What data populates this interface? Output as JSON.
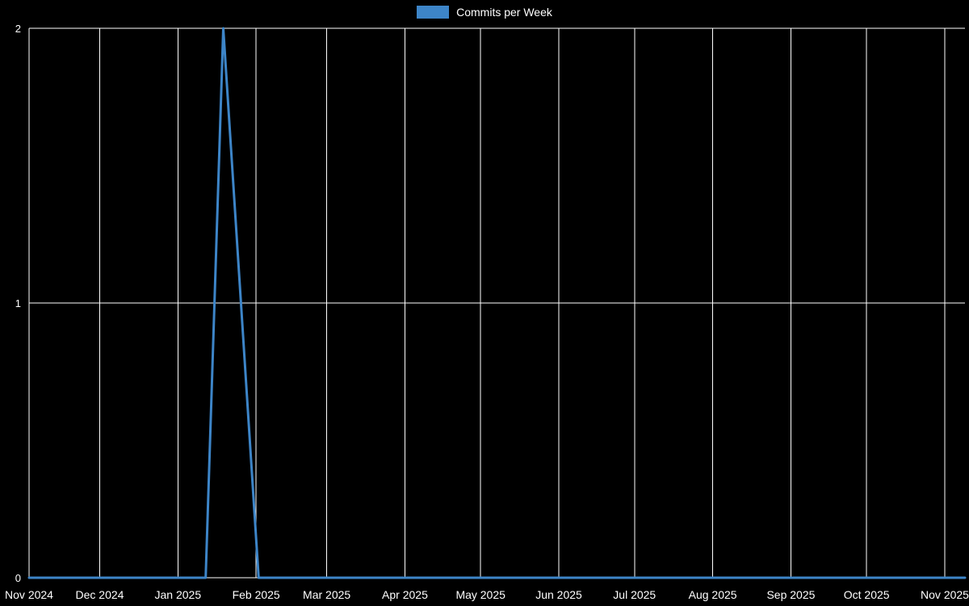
{
  "chart_data": {
    "type": "line",
    "title": "Commits per Week",
    "legend_position": "top",
    "background_color": "#000000",
    "grid_color": "#ffffff",
    "axis_text_color": "#ffffff",
    "line_color": "#3d85c8",
    "grid_on": true,
    "ylim": [
      0,
      2
    ],
    "y_ticks": [
      0,
      1,
      2
    ],
    "x_domain": [
      "2024-11-03",
      "2025-11-09"
    ],
    "x_ticks": [
      {
        "label": "Nov 2024",
        "date": "2024-11-03"
      },
      {
        "label": "Dec 2024",
        "date": "2024-12-01"
      },
      {
        "label": "Jan 2025",
        "date": "2025-01-01"
      },
      {
        "label": "Feb 2025",
        "date": "2025-02-01"
      },
      {
        "label": "Mar 2025",
        "date": "2025-03-01"
      },
      {
        "label": "Apr 2025",
        "date": "2025-04-01"
      },
      {
        "label": "May 2025",
        "date": "2025-05-01"
      },
      {
        "label": "Jun 2025",
        "date": "2025-06-01"
      },
      {
        "label": "Jul 2025",
        "date": "2025-07-01"
      },
      {
        "label": "Aug 2025",
        "date": "2025-08-01"
      },
      {
        "label": "Sep 2025",
        "date": "2025-09-01"
      },
      {
        "label": "Oct 2025",
        "date": "2025-10-01"
      },
      {
        "label": "Nov 2025",
        "date": "2025-11-01"
      }
    ],
    "series": [
      {
        "name": "Commits per Week",
        "points": [
          [
            "2024-11-03",
            0
          ],
          [
            "2024-11-10",
            0
          ],
          [
            "2024-11-17",
            0
          ],
          [
            "2024-11-24",
            0
          ],
          [
            "2024-12-01",
            0
          ],
          [
            "2024-12-08",
            0
          ],
          [
            "2024-12-15",
            0
          ],
          [
            "2024-12-22",
            0
          ],
          [
            "2024-12-29",
            0
          ],
          [
            "2025-01-05",
            0
          ],
          [
            "2025-01-12",
            0
          ],
          [
            "2025-01-19",
            2
          ],
          [
            "2025-01-26",
            1
          ],
          [
            "2025-02-02",
            0
          ],
          [
            "2025-02-09",
            0
          ],
          [
            "2025-02-16",
            0
          ],
          [
            "2025-02-23",
            0
          ],
          [
            "2025-03-02",
            0
          ],
          [
            "2025-03-09",
            0
          ],
          [
            "2025-03-16",
            0
          ],
          [
            "2025-03-23",
            0
          ],
          [
            "2025-03-30",
            0
          ],
          [
            "2025-04-06",
            0
          ],
          [
            "2025-04-13",
            0
          ],
          [
            "2025-04-20",
            0
          ],
          [
            "2025-04-27",
            0
          ],
          [
            "2025-05-04",
            0
          ],
          [
            "2025-05-11",
            0
          ],
          [
            "2025-05-18",
            0
          ],
          [
            "2025-05-25",
            0
          ],
          [
            "2025-06-01",
            0
          ],
          [
            "2025-06-08",
            0
          ],
          [
            "2025-06-15",
            0
          ],
          [
            "2025-06-22",
            0
          ],
          [
            "2025-06-29",
            0
          ],
          [
            "2025-07-06",
            0
          ],
          [
            "2025-07-13",
            0
          ],
          [
            "2025-07-20",
            0
          ],
          [
            "2025-07-27",
            0
          ],
          [
            "2025-08-03",
            0
          ],
          [
            "2025-08-10",
            0
          ],
          [
            "2025-08-17",
            0
          ],
          [
            "2025-08-24",
            0
          ],
          [
            "2025-08-31",
            0
          ],
          [
            "2025-09-07",
            0
          ],
          [
            "2025-09-14",
            0
          ],
          [
            "2025-09-21",
            0
          ],
          [
            "2025-09-28",
            0
          ],
          [
            "2025-10-05",
            0
          ],
          [
            "2025-10-12",
            0
          ],
          [
            "2025-10-19",
            0
          ],
          [
            "2025-10-26",
            0
          ],
          [
            "2025-11-02",
            0
          ],
          [
            "2025-11-09",
            0
          ]
        ]
      }
    ]
  }
}
